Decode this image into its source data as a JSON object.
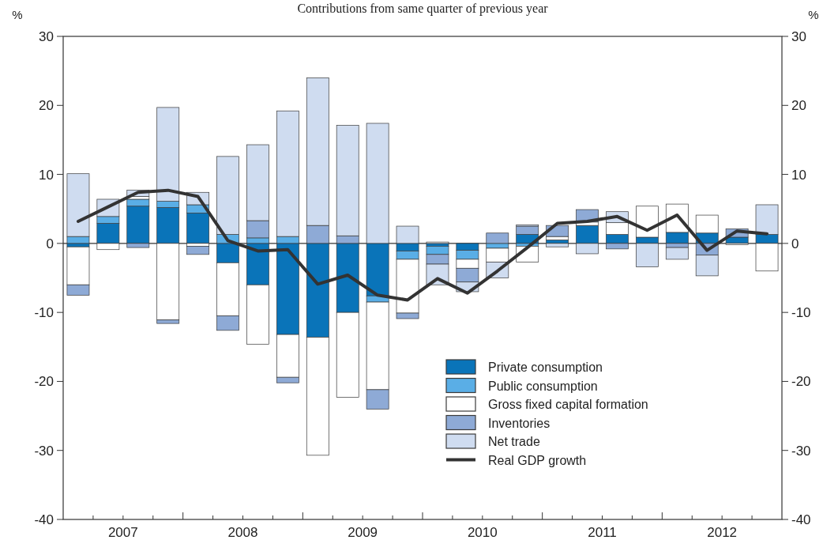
{
  "chart_data": {
    "type": "bar",
    "stacked": true,
    "title": "Contributions from same quarter of previous year",
    "ylabel": "%",
    "y2label": "%",
    "x": [
      2007.125,
      2007.375,
      2007.625,
      2007.875,
      2008.125,
      2008.375,
      2008.625,
      2008.875,
      2009.125,
      2009.375,
      2009.625,
      2009.875,
      2010.125,
      2010.375,
      2010.625,
      2010.875,
      2011.125,
      2011.375,
      2011.625,
      2011.875,
      2012.125,
      2012.375,
      2012.625,
      2012.875
    ],
    "xlim": [
      2007,
      2013
    ],
    "xticks": [
      {
        "value": 2007.25,
        "label": null
      },
      {
        "value": 2007.5,
        "label": "2007"
      },
      {
        "value": 2007.75,
        "label": null
      },
      {
        "value": 2008,
        "label": null
      },
      {
        "value": 2008.25,
        "label": null
      },
      {
        "value": 2008.5,
        "label": "2008"
      },
      {
        "value": 2008.75,
        "label": null
      },
      {
        "value": 2009,
        "label": null
      },
      {
        "value": 2009.25,
        "label": null
      },
      {
        "value": 2009.5,
        "label": "2009"
      },
      {
        "value": 2009.75,
        "label": null
      },
      {
        "value": 2010,
        "label": null
      },
      {
        "value": 2010.25,
        "label": null
      },
      {
        "value": 2010.5,
        "label": "2010"
      },
      {
        "value": 2010.75,
        "label": null
      },
      {
        "value": 2011,
        "label": null
      },
      {
        "value": 2011.25,
        "label": null
      },
      {
        "value": 2011.5,
        "label": "2011"
      },
      {
        "value": 2011.75,
        "label": null
      },
      {
        "value": 2012,
        "label": null
      },
      {
        "value": 2012.25,
        "label": null
      },
      {
        "value": 2012.5,
        "label": "2012"
      },
      {
        "value": 2012.75,
        "label": null
      }
    ],
    "ylim": [
      -40,
      30
    ],
    "yticks": [
      -40,
      -30,
      -20,
      -10,
      0,
      10,
      20,
      30
    ],
    "y2lim": [
      -40,
      30
    ],
    "y2ticks": [
      -40,
      -30,
      -20,
      -10,
      0,
      10,
      20,
      30
    ],
    "legend": "bottom right",
    "series": [
      {
        "name": "Private consumption",
        "color": "#0a74b9",
        "values": [
          -0.5,
          2.9,
          5.4,
          5.2,
          4.4,
          -2.8,
          -6.0,
          -13.2,
          -13.6,
          -10.0,
          -7.6,
          -1.1,
          -0.4,
          -1.0,
          null,
          1.3,
          0.5,
          2.6,
          1.3,
          0.9,
          1.6,
          1.5,
          0.9,
          1.3
        ]
      },
      {
        "name": "Public consumption",
        "color": "#5aaee6",
        "values": [
          1.0,
          1.0,
          1.0,
          0.9,
          1.2,
          1.3,
          0.8,
          1.0,
          null,
          null,
          -0.9,
          -1.2,
          -1.2,
          -1.3,
          -0.7,
          -0.4,
          null,
          null,
          null,
          null,
          null,
          null,
          null,
          null
        ]
      },
      {
        "name": "Gross fixed capital formation",
        "color": "#ffffff",
        "values": [
          -5.5,
          -0.9,
          0.4,
          -11.1,
          -0.4,
          -7.7,
          -8.6,
          -6.2,
          -17.1,
          -12.3,
          -12.7,
          -7.8,
          0.2,
          -1.3,
          -2.0,
          -2.3,
          0.5,
          0.5,
          1.7,
          4.5,
          4.1,
          2.6,
          -0.2,
          -4.0
        ]
      },
      {
        "name": "Inventories",
        "color": "#8eaad6",
        "values": [
          -1.5,
          null,
          -0.6,
          -0.5,
          -1.2,
          -2.1,
          2.5,
          -0.8,
          2.6,
          1.1,
          -2.8,
          -0.8,
          -1.4,
          -2.0,
          1.5,
          1.2,
          1.6,
          1.8,
          -0.8,
          null,
          -0.6,
          -1.7,
          1.2,
          null
        ]
      },
      {
        "name": "Net trade",
        "color": "#cfdcf0",
        "values": [
          9.1,
          2.5,
          0.9,
          13.6,
          1.8,
          11.3,
          11.0,
          18.2,
          21.4,
          16.0,
          17.4,
          2.5,
          -3.0,
          -1.4,
          -2.3,
          0.2,
          -0.5,
          -1.5,
          1.6,
          -3.4,
          -1.7,
          -3.0,
          null,
          4.3
        ]
      },
      {
        "name": "Real GDP growth",
        "type": "line",
        "color": "#333333",
        "values": [
          3.2,
          5.3,
          7.4,
          7.7,
          6.8,
          0.4,
          -1.1,
          -0.9,
          -5.9,
          -4.6,
          -7.5,
          -8.2,
          -5.1,
          -7.2,
          -4.0,
          -0.6,
          2.9,
          3.2,
          3.9,
          1.9,
          4.1,
          -1.0,
          1.8,
          1.4
        ]
      }
    ]
  }
}
